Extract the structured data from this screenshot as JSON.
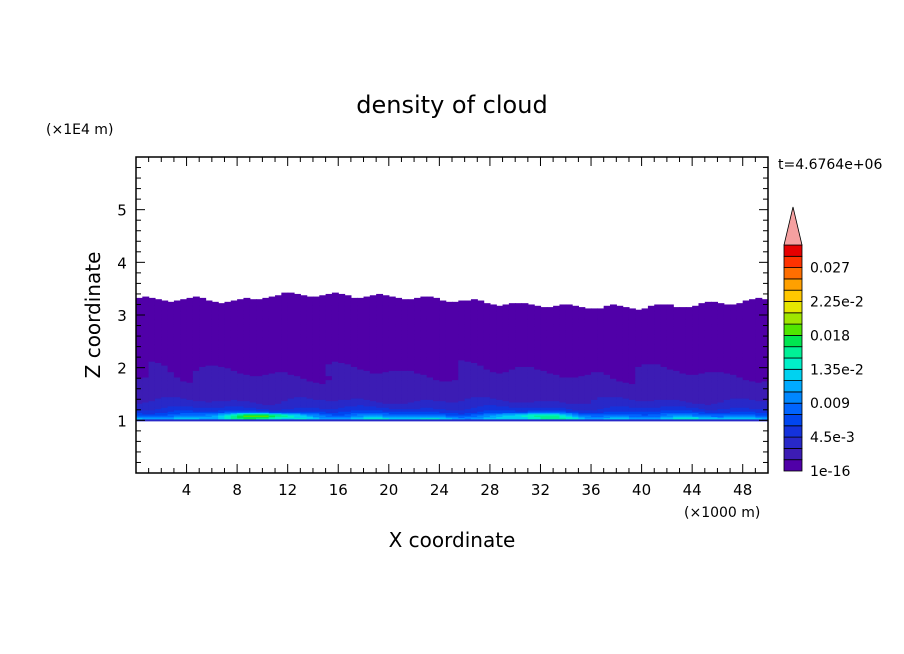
{
  "chart_data": {
    "type": "heatmap",
    "title": "density of cloud",
    "xlabel": "X coordinate",
    "ylabel": "Z coordinate",
    "x_unit": "(×1000 m)",
    "y_unit": "(×1E4 m)",
    "time_label": "t=4.6764e+06",
    "xlim": [
      0,
      50
    ],
    "ylim": [
      0,
      6
    ],
    "x_ticks": [
      "4",
      "8",
      "12",
      "16",
      "20",
      "24",
      "28",
      "32",
      "36",
      "40",
      "44",
      "48"
    ],
    "y_ticks": [
      "1",
      "2",
      "3",
      "4",
      "5"
    ],
    "colorbar": {
      "tick_labels": [
        "1e-16",
        "4.5e-3",
        "0.009",
        "1.35e-2",
        "0.018",
        "2.25e-2",
        "0.027"
      ],
      "tick_values": [
        0,
        0.0045,
        0.009,
        0.0135,
        0.018,
        0.0225,
        0.027
      ],
      "levels": [
        0,
        0.0015,
        0.003,
        0.0045,
        0.006,
        0.0075,
        0.009,
        0.0105,
        0.012,
        0.0135,
        0.015,
        0.0165,
        0.018,
        0.0195,
        0.021,
        0.0225,
        0.024,
        0.0255,
        0.027,
        0.0285
      ],
      "colors": [
        "#5000a8",
        "#3c1cb4",
        "#2828c8",
        "#1432dc",
        "#0046f0",
        "#0064ff",
        "#0087ff",
        "#00aaff",
        "#00d2f0",
        "#00f0c8",
        "#00f096",
        "#00e650",
        "#50e600",
        "#a0e600",
        "#e6e600",
        "#ffc800",
        "#ffa000",
        "#ff6e00",
        "#ff3200",
        "#e60000"
      ],
      "overflow_color": "#f5a0a0"
    },
    "cloud_layer": {
      "base_z": 1.0,
      "top_z": [
        3.3,
        3.3,
        3.25,
        3.35,
        3.4,
        3.35,
        3.3,
        3.2,
        3.15,
        3.15,
        3.2,
        3.3
      ],
      "top_x": [
        0,
        5,
        8,
        10,
        13,
        20,
        24,
        30,
        36,
        40,
        45,
        50
      ],
      "max_value_near": [
        {
          "x": 10,
          "z": 1.1,
          "value": 0.022
        },
        {
          "x": 32,
          "z": 1.1,
          "value": 0.018
        }
      ]
    }
  }
}
